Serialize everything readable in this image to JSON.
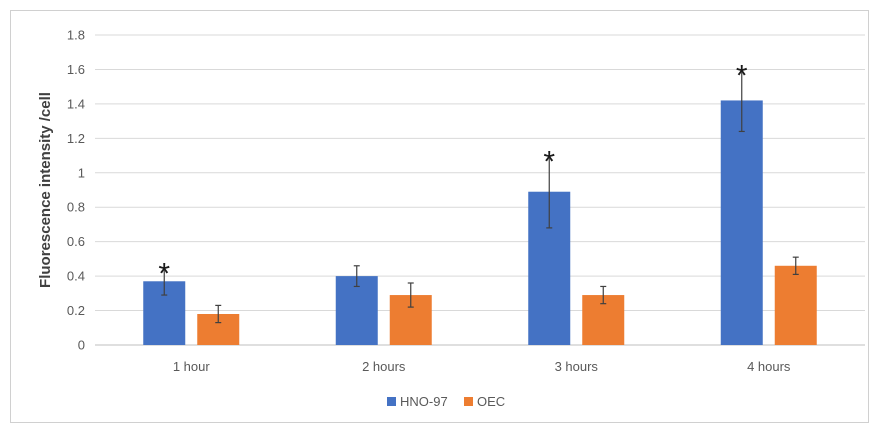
{
  "chart_data": {
    "type": "bar",
    "ylabel": "Fluorescence intensity /cell",
    "ylim": [
      0,
      1.8
    ],
    "yticks": [
      "0",
      "0.2",
      "0.4",
      "0.6",
      "0.8",
      "1",
      "1.2",
      "1.4",
      "1.6",
      "1.8"
    ],
    "categories": [
      "1 hour",
      "2 hours",
      "3 hours",
      "4 hours"
    ],
    "grid": true,
    "legend_position": "bottom",
    "series": [
      {
        "name": "HNO-97",
        "color": "#4472C4",
        "values": [
          0.37,
          0.4,
          0.89,
          1.42
        ],
        "error": [
          0.08,
          0.06,
          0.21,
          0.18
        ]
      },
      {
        "name": "OEC",
        "color": "#ED7D31",
        "values": [
          0.18,
          0.29,
          0.29,
          0.46
        ],
        "error": [
          0.05,
          0.07,
          0.05,
          0.05
        ]
      }
    ],
    "significance_marker": "*",
    "significant_categories": [
      0,
      2,
      3
    ]
  }
}
